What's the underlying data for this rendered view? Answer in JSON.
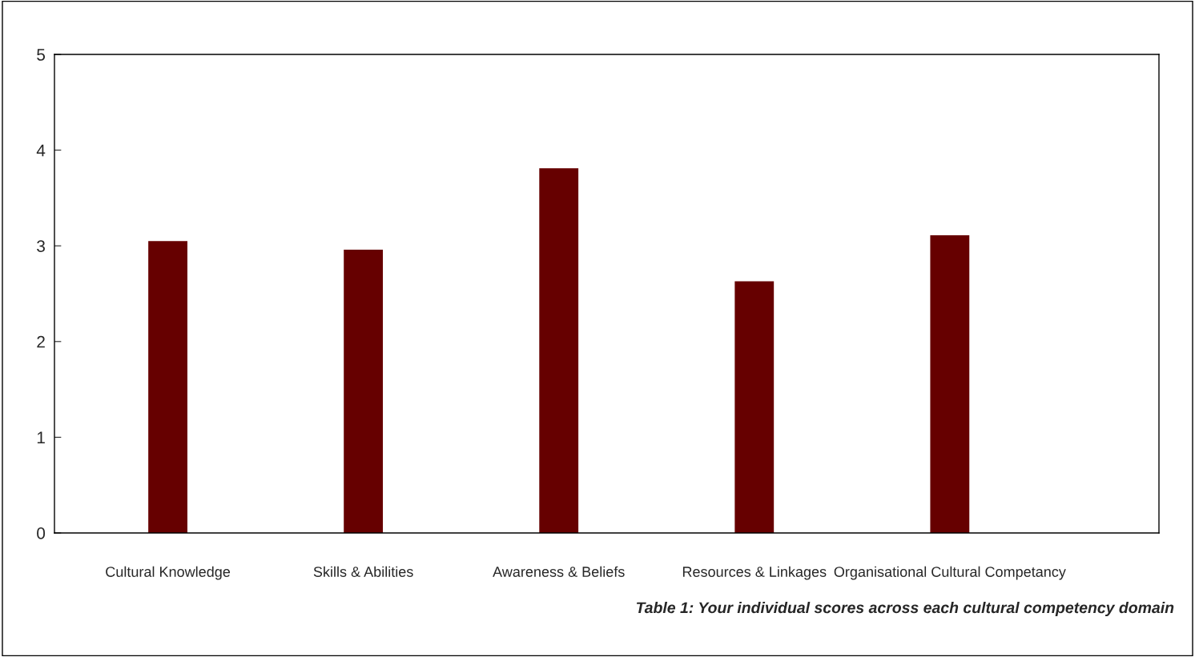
{
  "chart_data": {
    "type": "bar",
    "categories": [
      "Cultural Knowledge",
      "Skills & Abilities",
      "Awareness & Beliefs",
      "Resources & Linkages",
      "Organisational Cultural Competancy"
    ],
    "values": [
      3.05,
      2.96,
      3.81,
      2.63,
      3.11
    ],
    "color": "#660000",
    "ylim": [
      0,
      5
    ],
    "yticks": [
      0,
      1,
      2,
      3,
      4,
      5
    ],
    "grid": false,
    "legend": false,
    "annotations": [
      "Table 1: Your individual scores across each cultural competency domain"
    ]
  }
}
